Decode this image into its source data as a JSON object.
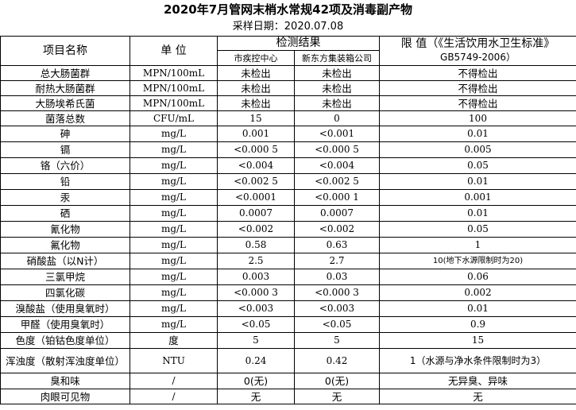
{
  "title": "2020年7月管网末梢水常规42项及消毒副产物",
  "sampling_date": "采样日期：2020.07.08",
  "headers": {
    "item_name": "项目名称",
    "unit": "单  位",
    "results": "检测结果",
    "lab_cdc": "市疾控中心",
    "lab_water": "新东方集装箱公司",
    "limit_line1": "限 值（《生活饮用水卫生标准》",
    "limit_line2": "GB5749-2006）"
  },
  "rows": [
    {
      "name": "总大肠菌群",
      "unit": "MPN/100mL",
      "cdc": "未检出",
      "water": "未检出",
      "limit": "不得检出"
    },
    {
      "name": "耐热大肠菌群",
      "unit": "MPN/100mL",
      "cdc": "未检出",
      "water": "未检出",
      "limit": "不得检出"
    },
    {
      "name": "大肠埃希氏菌",
      "unit": "MPN/100mL",
      "cdc": "未检出",
      "water": "未检出",
      "limit": "不得检出"
    },
    {
      "name": "菌落总数",
      "unit": "CFU/mL",
      "cdc": "15",
      "water": "0",
      "limit": "100"
    },
    {
      "name": "砷",
      "unit": "mg/L",
      "cdc": "0.001",
      "water": "<0.001",
      "limit": "0.01"
    },
    {
      "name": "镉",
      "unit": "mg/L",
      "cdc": "<0.000 5",
      "water": "<0.000 5",
      "limit": "0.005"
    },
    {
      "name": "铬（六价）",
      "unit": "mg/L",
      "cdc": "<0.004",
      "water": "<0.004",
      "limit": "0.05"
    },
    {
      "name": "铅",
      "unit": "mg/L",
      "cdc": "<0.002 5",
      "water": "<0.002 5",
      "limit": "0.01"
    },
    {
      "name": "汞",
      "unit": "mg/L",
      "cdc": "<0.0001",
      "water": "<0.000 1",
      "limit": "0.001"
    },
    {
      "name": "硒",
      "unit": "mg/L",
      "cdc": "0.0007",
      "water": "0.0007",
      "limit": "0.01"
    },
    {
      "name": "氰化物",
      "unit": "mg/L",
      "cdc": "<0.002",
      "water": "<0.002",
      "limit": "0.05"
    },
    {
      "name": "氟化物",
      "unit": "mg/L",
      "cdc": "0.58",
      "water": "0.63",
      "limit": "1"
    },
    {
      "name": "硝酸盐（以N计）",
      "unit": "mg/L",
      "cdc": "2.5",
      "water": "2.7",
      "limit": "10(地下水源限制时为20)"
    },
    {
      "name": "三氯甲烷",
      "unit": "mg/L",
      "cdc": "0.003",
      "water": "0.03",
      "limit": "0.06"
    },
    {
      "name": "四氯化碳",
      "unit": "mg/L",
      "cdc": "<0.000 3",
      "water": "<0.000 3",
      "limit": "0.002"
    },
    {
      "name": "溴酸盐（使用臭氧时）",
      "unit": "mg/L",
      "cdc": "<0.003",
      "water": "<0.003",
      "limit": "0.01"
    },
    {
      "name": "甲醛（使用臭氧时）",
      "unit": "mg/L",
      "cdc": "<0.05",
      "water": "<0.05",
      "limit": "0.9"
    },
    {
      "name": "色度（铂钴色度单位）",
      "unit": "度",
      "cdc": "5",
      "water": "5",
      "limit": "15"
    },
    {
      "name": "浑浊度（散射浑浊度单位）",
      "unit": "NTU",
      "cdc": "0.24",
      "water": "0.42",
      "limit": "1（水源与净水条件限制时为3）"
    },
    {
      "name": "臭和味",
      "unit": "/",
      "cdc": "0(无)",
      "water": "0(无)",
      "limit": "无异臭、异味"
    },
    {
      "name": "肉眼可见物",
      "unit": "/",
      "cdc": "无",
      "water": "无",
      "limit": "无"
    }
  ]
}
